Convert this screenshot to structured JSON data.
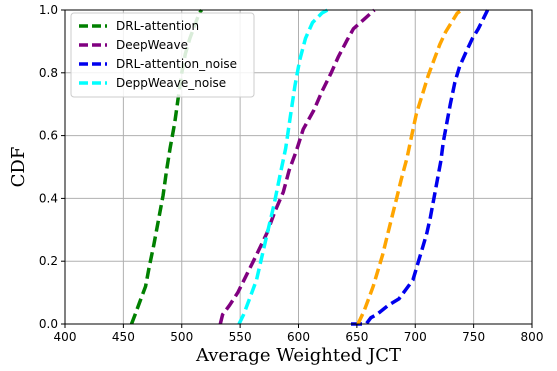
{
  "chart_data": {
    "type": "line",
    "title": "",
    "xlabel": "Average Weighted JCT",
    "ylabel": "CDF",
    "xlim": [
      400,
      800
    ],
    "ylim": [
      0.0,
      1.0
    ],
    "x_ticks": [
      400,
      450,
      500,
      550,
      600,
      650,
      700,
      750,
      800
    ],
    "y_ticks": [
      0.0,
      0.2,
      0.4,
      0.6,
      0.8,
      1.0
    ],
    "x_tick_labels": [
      "400",
      "450",
      "500",
      "550",
      "600",
      "650",
      "700",
      "750",
      "800"
    ],
    "y_tick_labels": [
      "0.0",
      "0.2",
      "0.4",
      "0.6",
      "0.8",
      "1.0"
    ],
    "grid": true,
    "legend_position": "top-left",
    "series": [
      {
        "name": "DRL-attention",
        "color": "#008000",
        "in_legend": true,
        "points": [
          [
            457,
            0.0
          ],
          [
            460,
            0.03
          ],
          [
            465,
            0.08
          ],
          [
            469,
            0.12
          ],
          [
            472,
            0.18
          ],
          [
            476,
            0.25
          ],
          [
            480,
            0.33
          ],
          [
            484,
            0.41
          ],
          [
            487,
            0.49
          ],
          [
            490,
            0.56
          ],
          [
            494,
            0.64
          ],
          [
            497,
            0.72
          ],
          [
            500,
            0.8
          ],
          [
            503,
            0.86
          ],
          [
            507,
            0.91
          ],
          [
            511,
            0.95
          ],
          [
            515,
            0.99
          ],
          [
            517,
            1.0
          ]
        ]
      },
      {
        "name": "DeepWeave",
        "color": "#800080",
        "in_legend": true,
        "points": [
          [
            533,
            0.0
          ],
          [
            535,
            0.03
          ],
          [
            541,
            0.06
          ],
          [
            548,
            0.1
          ],
          [
            556,
            0.16
          ],
          [
            564,
            0.22
          ],
          [
            573,
            0.29
          ],
          [
            580,
            0.36
          ],
          [
            587,
            0.42
          ],
          [
            592,
            0.49
          ],
          [
            598,
            0.55
          ],
          [
            604,
            0.62
          ],
          [
            613,
            0.68
          ],
          [
            620,
            0.74
          ],
          [
            628,
            0.8
          ],
          [
            634,
            0.85
          ],
          [
            641,
            0.9
          ],
          [
            647,
            0.94
          ],
          [
            656,
            0.97
          ],
          [
            665,
            1.0
          ]
        ]
      },
      {
        "name": "DRL-attention_noise",
        "color": "#0000ee",
        "in_legend": true,
        "points": [
          [
            645,
            0.0
          ],
          [
            658,
            0.0
          ],
          [
            662,
            0.02
          ],
          [
            667,
            0.03
          ],
          [
            677,
            0.06
          ],
          [
            686,
            0.08
          ],
          [
            692,
            0.11
          ],
          [
            698,
            0.14
          ],
          [
            702,
            0.19
          ],
          [
            706,
            0.24
          ],
          [
            710,
            0.29
          ],
          [
            713,
            0.34
          ],
          [
            716,
            0.4
          ],
          [
            719,
            0.46
          ],
          [
            722,
            0.52
          ],
          [
            724,
            0.58
          ],
          [
            727,
            0.64
          ],
          [
            730,
            0.7
          ],
          [
            734,
            0.77
          ],
          [
            738,
            0.82
          ],
          [
            744,
            0.87
          ],
          [
            749,
            0.91
          ],
          [
            754,
            0.94
          ],
          [
            758,
            0.97
          ],
          [
            762,
            1.0
          ]
        ]
      },
      {
        "name": "DeppWeave_noise",
        "color": "#00ffff",
        "in_legend": true,
        "points": [
          [
            549,
            0.0
          ],
          [
            553,
            0.03
          ],
          [
            558,
            0.08
          ],
          [
            564,
            0.14
          ],
          [
            569,
            0.22
          ],
          [
            574,
            0.3
          ],
          [
            579,
            0.38
          ],
          [
            584,
            0.47
          ],
          [
            589,
            0.56
          ],
          [
            593,
            0.66
          ],
          [
            597,
            0.76
          ],
          [
            601,
            0.84
          ],
          [
            606,
            0.91
          ],
          [
            612,
            0.96
          ],
          [
            620,
            0.99
          ],
          [
            625,
            1.0
          ]
        ]
      },
      {
        "name": "",
        "color": "#ffa500",
        "in_legend": false,
        "points": [
          [
            651,
            0.0
          ],
          [
            656,
            0.04
          ],
          [
            660,
            0.08
          ],
          [
            664,
            0.12
          ],
          [
            668,
            0.17
          ],
          [
            672,
            0.22
          ],
          [
            676,
            0.28
          ],
          [
            680,
            0.34
          ],
          [
            684,
            0.4
          ],
          [
            688,
            0.46
          ],
          [
            693,
            0.53
          ],
          [
            697,
            0.6
          ],
          [
            701,
            0.67
          ],
          [
            706,
            0.73
          ],
          [
            711,
            0.79
          ],
          [
            716,
            0.84
          ],
          [
            721,
            0.89
          ],
          [
            726,
            0.93
          ],
          [
            731,
            0.96
          ],
          [
            736,
            0.99
          ],
          [
            740,
            1.0
          ]
        ]
      }
    ]
  }
}
